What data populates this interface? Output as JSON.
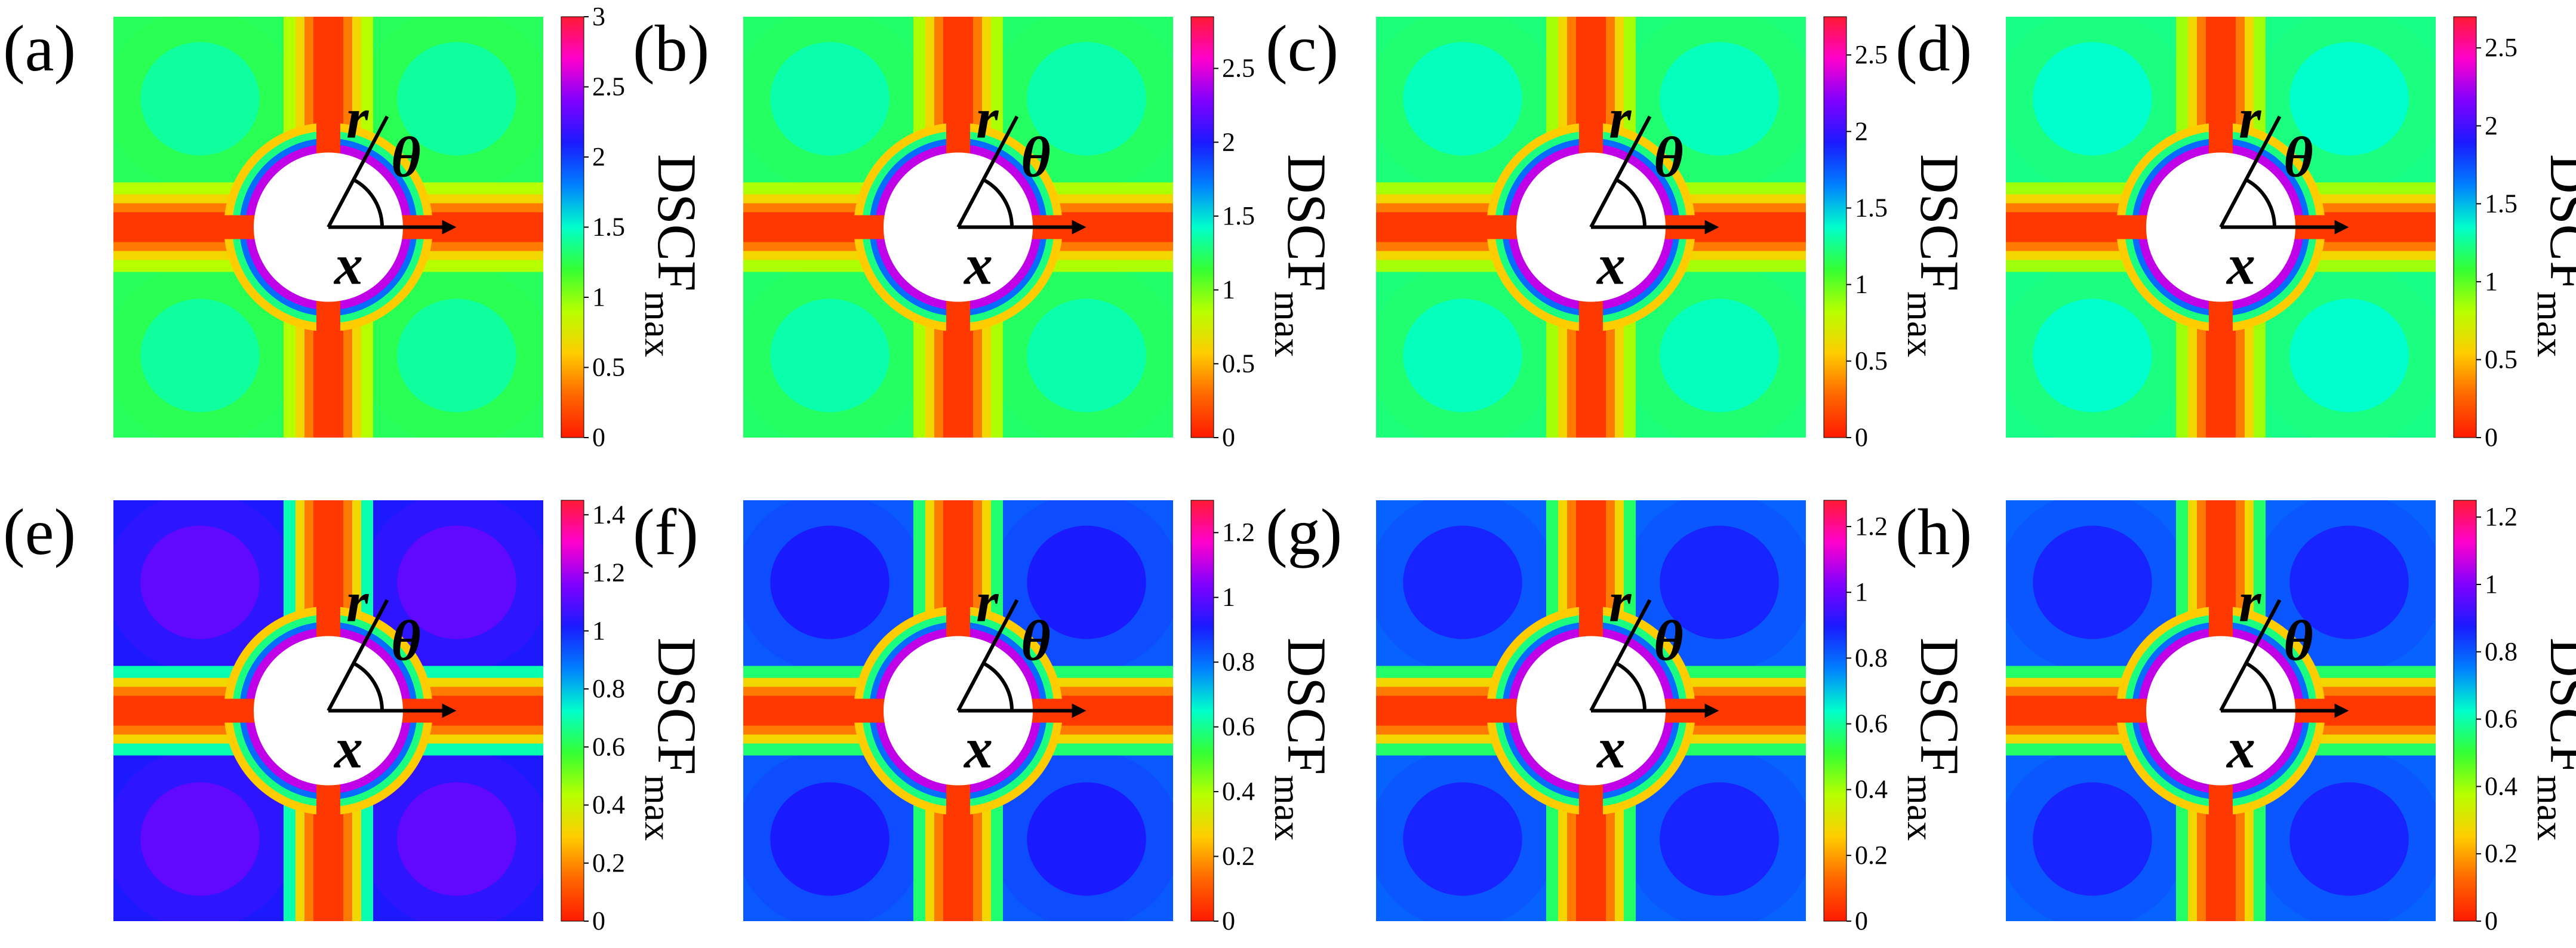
{
  "figure": {
    "cbar_label_main": "DSCF",
    "cbar_label_sub": "max",
    "r_label": "r",
    "theta_label": "θ",
    "x_label": "x"
  },
  "colormap": [
    "#ff1a00",
    "#ff6600",
    "#ffcc00",
    "#b8ff00",
    "#33ff33",
    "#00ffcc",
    "#0080ff",
    "#1a1aff",
    "#8000ff",
    "#ff00cc",
    "#ff1a33"
  ],
  "chart_data": [
    {
      "type": "heatmap",
      "panel": "(a)",
      "cbar_ticks": [
        "0",
        "0.5",
        "1",
        "1.5",
        "2",
        "2.5",
        "3"
      ],
      "clim": [
        0,
        3
      ],
      "corner_level": 0.42,
      "band_level": 0.04,
      "ring_level": 0.85
    },
    {
      "type": "heatmap",
      "panel": "(b)",
      "cbar_ticks": [
        "0",
        "0.5",
        "1",
        "1.5",
        "2",
        "2.5"
      ],
      "clim": [
        0,
        2.85
      ],
      "corner_level": 0.43,
      "band_level": 0.04,
      "ring_level": 0.85
    },
    {
      "type": "heatmap",
      "panel": "(c)",
      "cbar_ticks": [
        "0",
        "0.5",
        "1",
        "1.5",
        "2",
        "2.5"
      ],
      "clim": [
        0,
        2.75
      ],
      "corner_level": 0.44,
      "band_level": 0.04,
      "ring_level": 0.85
    },
    {
      "type": "heatmap",
      "panel": "(d)",
      "cbar_ticks": [
        "0",
        "0.5",
        "1",
        "1.5",
        "2",
        "2.5"
      ],
      "clim": [
        0,
        2.7
      ],
      "corner_level": 0.45,
      "band_level": 0.04,
      "ring_level": 0.85
    },
    {
      "type": "heatmap",
      "panel": "(e)",
      "cbar_ticks": [
        "0",
        "0.2",
        "0.4",
        "0.6",
        "0.8",
        "1",
        "1.2",
        "1.4"
      ],
      "clim": [
        0,
        1.45
      ],
      "corner_level": 0.72,
      "band_level": 0.04,
      "ring_level": 0.85
    },
    {
      "type": "heatmap",
      "panel": "(f)",
      "cbar_ticks": [
        "0",
        "0.2",
        "0.4",
        "0.6",
        "0.8",
        "1",
        "1.2"
      ],
      "clim": [
        0,
        1.3
      ],
      "corner_level": 0.65,
      "band_level": 0.04,
      "ring_level": 0.85
    },
    {
      "type": "heatmap",
      "panel": "(g)",
      "cbar_ticks": [
        "0",
        "0.2",
        "0.4",
        "0.6",
        "0.8",
        "1",
        "1.2"
      ],
      "clim": [
        0,
        1.28
      ],
      "corner_level": 0.64,
      "band_level": 0.04,
      "ring_level": 0.85
    },
    {
      "type": "heatmap",
      "panel": "(h)",
      "cbar_ticks": [
        "0",
        "0.2",
        "0.4",
        "0.6",
        "0.8",
        "1",
        "1.2"
      ],
      "clim": [
        0,
        1.25
      ],
      "corner_level": 0.64,
      "band_level": 0.04,
      "ring_level": 0.85
    }
  ]
}
